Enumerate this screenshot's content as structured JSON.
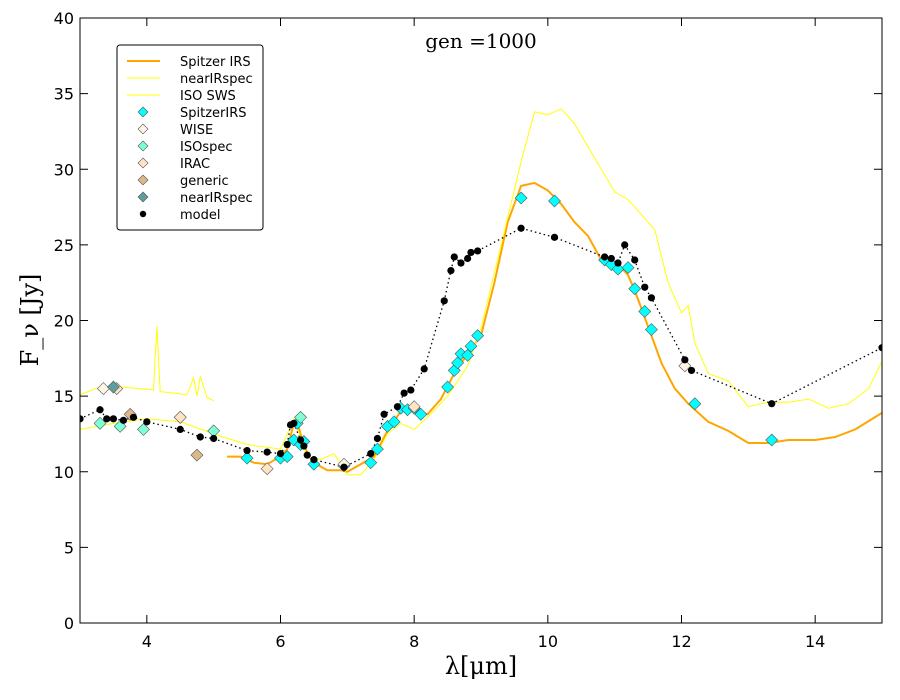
{
  "chart_data": {
    "type": "line",
    "title": "gen =1000",
    "xlabel": "λ[μm]",
    "ylabel": "F_ν [Jy]",
    "xlim": [
      3,
      15
    ],
    "ylim": [
      0,
      40
    ],
    "xticks": [
      4,
      6,
      8,
      10,
      12,
      14
    ],
    "yticks": [
      0,
      5,
      10,
      15,
      20,
      25,
      30,
      35,
      40
    ],
    "legend_position": "top-left",
    "colors": {
      "spitzer_irs": "#ffa500",
      "nearir": "#ffff00",
      "iso_sws": "#ffff00",
      "spitzer_irs_pts": "#00ffff",
      "wise": "#fdf5e6",
      "isospec": "#7fffd4",
      "irac": "#ffe4c4",
      "generic": "#deb887",
      "nearirspec_pts": "#5f9ea0",
      "model": "#000000"
    },
    "series": [
      {
        "name": "Spitzer IRS",
        "kind": "line",
        "color": "#ffa500",
        "x": [
          5.2,
          5.4,
          5.6,
          5.8,
          6.0,
          6.1,
          6.2,
          6.25,
          6.3,
          6.4,
          6.5,
          6.7,
          6.9,
          7.0,
          7.2,
          7.4,
          7.6,
          7.8,
          8.0,
          8.2,
          8.4,
          8.6,
          8.8,
          9.0,
          9.2,
          9.4,
          9.6,
          9.8,
          10.0,
          10.2,
          10.4,
          10.6,
          10.8,
          11.0,
          11.1,
          11.2,
          11.3,
          11.5,
          11.7,
          11.9,
          12.1,
          12.4,
          12.7,
          13.0,
          13.3,
          13.6,
          14.0,
          14.3,
          14.6,
          15.0
        ],
        "y": [
          11.0,
          11.0,
          10.6,
          10.5,
          11.0,
          11.5,
          13.2,
          13.4,
          12.5,
          11.2,
          10.6,
          10.1,
          10.1,
          10.0,
          10.5,
          11.0,
          12.7,
          14.0,
          14.1,
          13.8,
          14.8,
          16.5,
          17.8,
          19.0,
          22.5,
          26.5,
          28.9,
          29.1,
          28.6,
          27.7,
          26.5,
          25.6,
          24.0,
          23.6,
          23.5,
          23.0,
          22.0,
          19.6,
          17.2,
          15.5,
          14.5,
          13.3,
          12.7,
          11.9,
          11.9,
          12.1,
          12.1,
          12.3,
          12.8,
          13.9
        ]
      },
      {
        "name": "nearIRspec",
        "kind": "line",
        "color": "#ffff00",
        "x": [
          3.0,
          3.3,
          3.6,
          3.9,
          4.1,
          4.15,
          4.2,
          4.4,
          4.6,
          4.7,
          4.75,
          4.8,
          4.9,
          5.0
        ],
        "y": [
          15.1,
          15.6,
          15.6,
          15.5,
          15.4,
          19.6,
          15.3,
          15.2,
          15.1,
          16.2,
          15.0,
          16.3,
          14.9,
          14.7
        ]
      },
      {
        "name": "ISO SWS",
        "kind": "line",
        "color": "#ffff00",
        "x": [
          3.0,
          3.5,
          4.0,
          4.5,
          5.0,
          5.5,
          6.0,
          6.2,
          6.4,
          6.6,
          6.8,
          7.0,
          7.2,
          7.4,
          7.6,
          7.8,
          8.0,
          8.2,
          8.5,
          8.8,
          9.0,
          9.3,
          9.6,
          9.8,
          10.0,
          10.2,
          10.4,
          10.6,
          10.8,
          11.0,
          11.2,
          11.4,
          11.6,
          11.8,
          12.0,
          12.1,
          12.2,
          12.4,
          12.7,
          13.0,
          13.3,
          13.6,
          13.9,
          14.2,
          14.5,
          14.8,
          15.0
        ],
        "y": [
          12.8,
          13.2,
          13.5,
          13.3,
          12.5,
          11.8,
          11.5,
          13.5,
          11.0,
          10.8,
          11.2,
          9.8,
          9.8,
          10.8,
          12.5,
          13.2,
          12.8,
          13.6,
          15.0,
          17.0,
          19.5,
          25.0,
          30.5,
          33.8,
          33.6,
          34.0,
          33.0,
          31.5,
          30.0,
          28.5,
          28.0,
          27.0,
          26.0,
          22.5,
          20.5,
          21.0,
          18.5,
          16.5,
          16.0,
          14.3,
          14.6,
          14.6,
          14.8,
          14.2,
          14.5,
          15.5,
          17.3
        ]
      },
      {
        "name": "SpitzerIRS",
        "kind": "marker",
        "marker": "diamond",
        "color": "#00ffff",
        "x": [
          5.5,
          6.0,
          6.1,
          6.2,
          6.25,
          6.3,
          6.35,
          6.5,
          6.95,
          7.35,
          7.45,
          7.6,
          7.7,
          7.8,
          7.9,
          8.0,
          8.1,
          8.5,
          8.6,
          8.65,
          8.7,
          8.8,
          8.85,
          8.95,
          9.6,
          10.1,
          10.85,
          10.95,
          11.05,
          11.2,
          11.3,
          11.45,
          11.55,
          12.2,
          13.35
        ],
        "y": [
          10.9,
          10.9,
          11.0,
          12.1,
          13.2,
          11.8,
          12.0,
          10.5,
          10.4,
          10.6,
          11.5,
          13.0,
          13.3,
          14.2,
          14.1,
          14.2,
          13.8,
          15.6,
          16.7,
          17.2,
          17.8,
          17.7,
          18.3,
          19.0,
          28.1,
          27.9,
          24.0,
          23.7,
          23.4,
          23.5,
          22.1,
          20.6,
          19.4,
          14.5,
          12.1
        ]
      },
      {
        "name": "WISE",
        "kind": "marker",
        "marker": "diamond",
        "color": "#fdf5e6",
        "x": [
          3.35,
          6.95,
          12.05
        ],
        "y": [
          15.5,
          10.5,
          17.0
        ]
      },
      {
        "name": "ISOspec",
        "kind": "marker",
        "marker": "diamond",
        "color": "#7fffd4",
        "x": [
          3.3,
          3.6,
          3.95,
          4.5,
          5.0,
          6.3
        ],
        "y": [
          13.2,
          13.0,
          12.8,
          13.6,
          12.7,
          13.6
        ]
      },
      {
        "name": "IRAC",
        "kind": "marker",
        "marker": "diamond",
        "color": "#ffe4c4",
        "x": [
          3.55,
          4.5,
          5.8,
          8.0
        ],
        "y": [
          15.5,
          13.6,
          10.2,
          14.3
        ]
      },
      {
        "name": "generic",
        "kind": "marker",
        "marker": "diamond",
        "color": "#deb887",
        "x": [
          3.75,
          4.75
        ],
        "y": [
          13.8,
          11.1
        ]
      },
      {
        "name": "nearIRspec",
        "kind": "marker",
        "marker": "diamond",
        "color": "#5f9ea0",
        "x": [
          3.5
        ],
        "y": [
          15.6
        ]
      },
      {
        "name": "model",
        "kind": "dotted-marker",
        "marker": "circle",
        "color": "#000000",
        "x": [
          3.0,
          3.3,
          3.4,
          3.5,
          3.65,
          3.8,
          4.0,
          4.5,
          4.8,
          5.0,
          5.5,
          5.8,
          6.0,
          6.1,
          6.15,
          6.2,
          6.3,
          6.35,
          6.4,
          6.5,
          6.95,
          7.35,
          7.45,
          7.55,
          7.75,
          7.85,
          7.95,
          8.15,
          8.45,
          8.55,
          8.6,
          8.7,
          8.8,
          8.85,
          8.95,
          9.6,
          10.1,
          10.85,
          10.95,
          11.05,
          11.15,
          11.3,
          11.45,
          11.55,
          12.05,
          12.15,
          13.35,
          15.0
        ],
        "y": [
          13.5,
          14.1,
          13.5,
          13.5,
          13.4,
          13.6,
          13.3,
          12.8,
          12.3,
          12.2,
          11.4,
          11.3,
          11.2,
          11.8,
          13.1,
          13.2,
          12.1,
          11.7,
          11.1,
          10.8,
          10.3,
          11.2,
          12.2,
          13.8,
          14.3,
          15.2,
          15.4,
          16.8,
          21.3,
          23.3,
          24.2,
          23.8,
          24.1,
          24.5,
          24.6,
          26.1,
          25.5,
          24.2,
          24.1,
          23.8,
          25.0,
          24.0,
          22.2,
          21.5,
          17.4,
          16.7,
          14.5,
          18.2
        ]
      }
    ]
  }
}
